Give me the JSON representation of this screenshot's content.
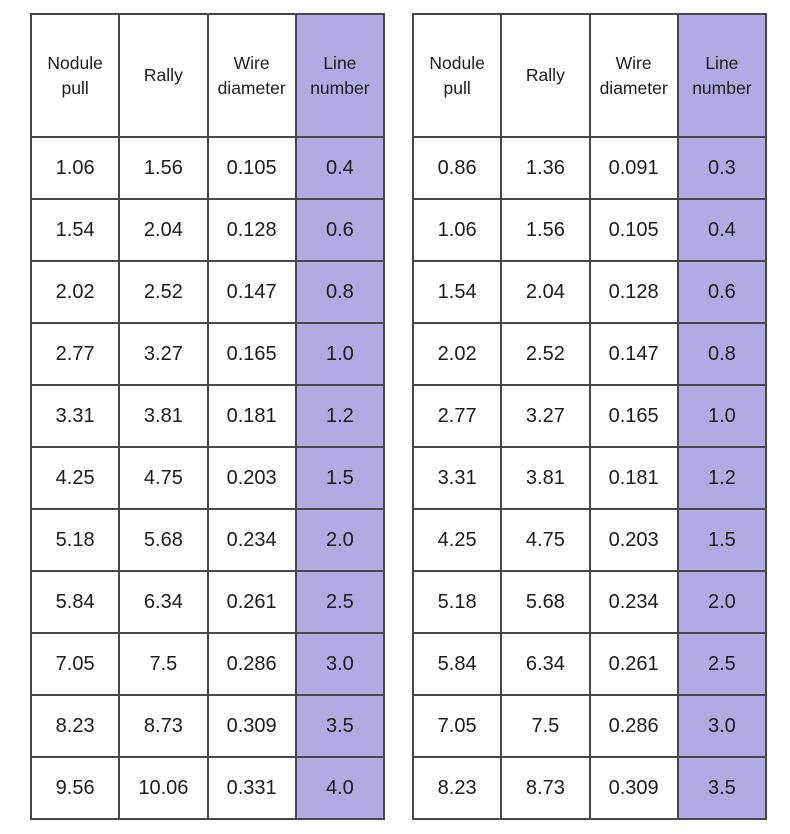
{
  "page": {
    "background_color": "#ffffff",
    "highlight_color": "#b2aae2",
    "border_color": "#474747",
    "text_color": "#1c1c1c"
  },
  "tables": [
    {
      "name": "spec-table-left",
      "highlight_column": 3,
      "headers": [
        "Nodule pull",
        "Rally",
        "Wire diameter",
        "Line number"
      ],
      "rows": [
        [
          "1.06",
          "1.56",
          "0.105",
          "0.4"
        ],
        [
          "1.54",
          "2.04",
          "0.128",
          "0.6"
        ],
        [
          "2.02",
          "2.52",
          "0.147",
          "0.8"
        ],
        [
          "2.77",
          "3.27",
          "0.165",
          "1.0"
        ],
        [
          "3.31",
          "3.81",
          "0.181",
          "1.2"
        ],
        [
          "4.25",
          "4.75",
          "0.203",
          "1.5"
        ],
        [
          "5.18",
          "5.68",
          "0.234",
          "2.0"
        ],
        [
          "5.84",
          "6.34",
          "0.261",
          "2.5"
        ],
        [
          "7.05",
          "7.5",
          "0.286",
          "3.0"
        ],
        [
          "8.23",
          "8.73",
          "0.309",
          "3.5"
        ],
        [
          "9.56",
          "10.06",
          "0.331",
          "4.0"
        ]
      ]
    },
    {
      "name": "spec-table-right",
      "highlight_column": 3,
      "headers": [
        "Nodule pull",
        "Rally",
        "Wire diameter",
        "Line number"
      ],
      "rows": [
        [
          "0.86",
          "1.36",
          "0.091",
          "0.3"
        ],
        [
          "1.06",
          "1.56",
          "0.105",
          "0.4"
        ],
        [
          "1.54",
          "2.04",
          "0.128",
          "0.6"
        ],
        [
          "2.02",
          "2.52",
          "0.147",
          "0.8"
        ],
        [
          "2.77",
          "3.27",
          "0.165",
          "1.0"
        ],
        [
          "3.31",
          "3.81",
          "0.181",
          "1.2"
        ],
        [
          "4.25",
          "4.75",
          "0.203",
          "1.5"
        ],
        [
          "5.18",
          "5.68",
          "0.234",
          "2.0"
        ],
        [
          "5.84",
          "6.34",
          "0.261",
          "2.5"
        ],
        [
          "7.05",
          "7.5",
          "0.286",
          "3.0"
        ],
        [
          "8.23",
          "8.73",
          "0.309",
          "3.5"
        ]
      ]
    }
  ]
}
